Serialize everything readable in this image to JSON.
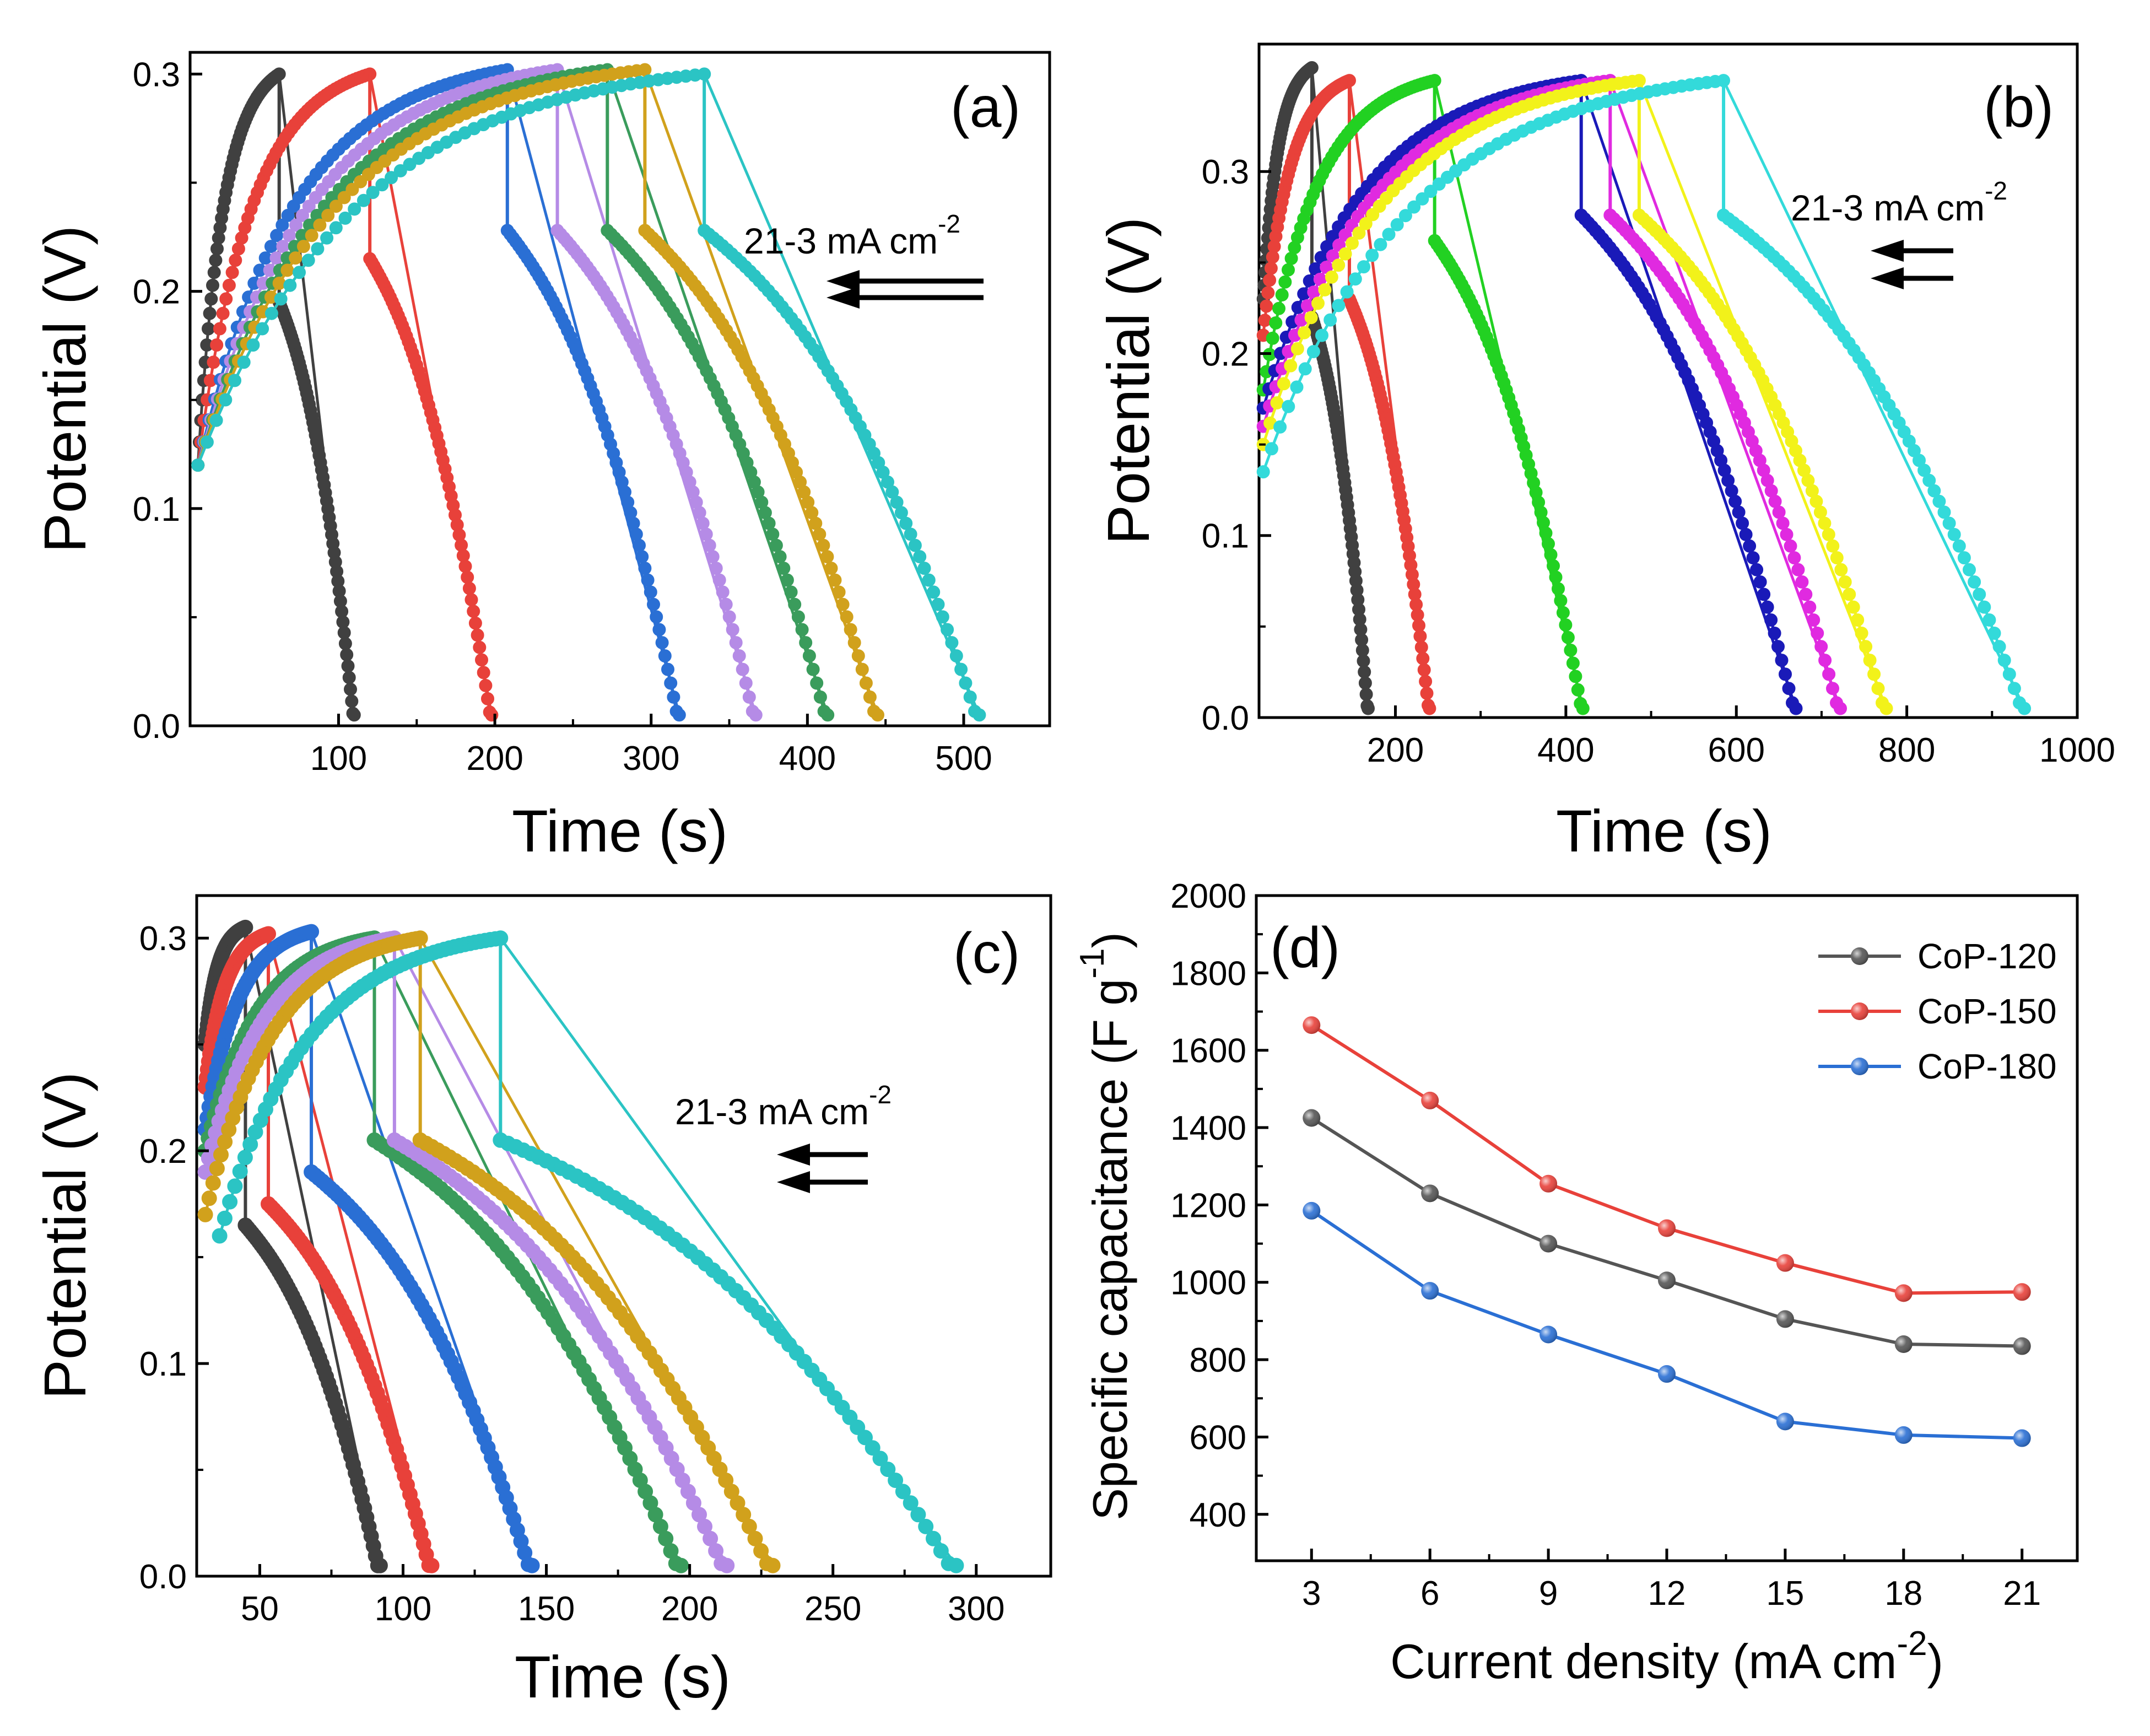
{
  "figure": {
    "arrow_note": "21-3 mA cm",
    "arrow_note_sup": "-2"
  },
  "chart_data": [
    {
      "id": "a",
      "type": "line",
      "panel_label": "(a)",
      "xlabel": "Time (s)",
      "ylabel": "Potential (V)",
      "xlim": [
        5,
        555
      ],
      "ylim": [
        0,
        0.31
      ],
      "xticks": [
        100,
        200,
        300,
        400,
        500
      ],
      "yticks": [
        0.0,
        0.1,
        0.2,
        0.3
      ],
      "series": [
        {
          "color": "#404040",
          "start_v": 0.12,
          "peak_v": 0.3,
          "charge_start": 10,
          "charge_end": 62,
          "discharge_start_v": 0.195,
          "discharge_end": 110
        },
        {
          "color": "#e8413a",
          "start_v": 0.12,
          "peak_v": 0.3,
          "charge_start": 10,
          "charge_end": 120,
          "discharge_start_v": 0.215,
          "discharge_end": 198
        },
        {
          "color": "#2a6fd4",
          "start_v": 0.12,
          "peak_v": 0.302,
          "charge_start": 10,
          "charge_end": 208,
          "discharge_start_v": 0.228,
          "discharge_end": 318
        },
        {
          "color": "#b58be6",
          "start_v": 0.12,
          "peak_v": 0.302,
          "charge_start": 10,
          "charge_end": 240,
          "discharge_start_v": 0.228,
          "discharge_end": 367
        },
        {
          "color": "#3a9c5c",
          "start_v": 0.12,
          "peak_v": 0.302,
          "charge_start": 10,
          "charge_end": 272,
          "discharge_start_v": 0.228,
          "discharge_end": 413
        },
        {
          "color": "#d1a11c",
          "start_v": 0.12,
          "peak_v": 0.302,
          "charge_start": 10,
          "charge_end": 296,
          "discharge_start_v": 0.228,
          "discharge_end": 445
        },
        {
          "color": "#2bc4c4",
          "start_v": 0.12,
          "peak_v": 0.3,
          "charge_start": 10,
          "charge_end": 334,
          "discharge_start_v": 0.228,
          "discharge_end": 510
        }
      ]
    },
    {
      "id": "b",
      "type": "line",
      "panel_label": "(b)",
      "xlabel": "Time (s)",
      "ylabel": "Potential (V)",
      "xlim": [
        40,
        1000
      ],
      "ylim": [
        0,
        0.37
      ],
      "xticks": [
        200,
        400,
        600,
        800,
        1000
      ],
      "yticks": [
        0.0,
        0.1,
        0.2,
        0.3
      ],
      "series": [
        {
          "color": "#404040",
          "start_v": 0.23,
          "peak_v": 0.357,
          "charge_start": 45,
          "charge_end": 102,
          "discharge_start_v": 0.22,
          "discharge_end": 168
        },
        {
          "color": "#e8413a",
          "start_v": 0.21,
          "peak_v": 0.35,
          "charge_start": 45,
          "charge_end": 146,
          "discharge_start_v": 0.23,
          "discharge_end": 240
        },
        {
          "color": "#22d122",
          "start_v": 0.18,
          "peak_v": 0.35,
          "charge_start": 45,
          "charge_end": 246,
          "discharge_start_v": 0.262,
          "discharge_end": 420
        },
        {
          "color": "#1a1ab8",
          "start_v": 0.17,
          "peak_v": 0.35,
          "charge_start": 45,
          "charge_end": 418,
          "discharge_start_v": 0.276,
          "discharge_end": 670
        },
        {
          "color": "#e02ae0",
          "start_v": 0.16,
          "peak_v": 0.35,
          "charge_start": 45,
          "charge_end": 452,
          "discharge_start_v": 0.276,
          "discharge_end": 722
        },
        {
          "color": "#f2f21a",
          "start_v": 0.15,
          "peak_v": 0.35,
          "charge_start": 45,
          "charge_end": 486,
          "discharge_start_v": 0.276,
          "discharge_end": 776
        },
        {
          "color": "#33dada",
          "start_v": 0.135,
          "peak_v": 0.35,
          "charge_start": 45,
          "charge_end": 585,
          "discharge_start_v": 0.276,
          "discharge_end": 938
        }
      ]
    },
    {
      "id": "c",
      "type": "line",
      "panel_label": "(c)",
      "xlabel": "Time (s)",
      "ylabel": "Potential (V)",
      "xlim": [
        28,
        326
      ],
      "ylim": [
        0,
        0.32
      ],
      "xticks": [
        50,
        100,
        150,
        200,
        250,
        300
      ],
      "yticks": [
        0.0,
        0.1,
        0.2,
        0.3
      ],
      "series": [
        {
          "color": "#404040",
          "start_v": 0.25,
          "peak_v": 0.305,
          "charge_start": 31,
          "charge_end": 45,
          "discharge_start_v": 0.165,
          "discharge_end": 92
        },
        {
          "color": "#e8413a",
          "start_v": 0.23,
          "peak_v": 0.302,
          "charge_start": 31,
          "charge_end": 53,
          "discharge_start_v": 0.175,
          "discharge_end": 110
        },
        {
          "color": "#2a6fd4",
          "start_v": 0.21,
          "peak_v": 0.303,
          "charge_start": 31,
          "charge_end": 68,
          "discharge_start_v": 0.19,
          "discharge_end": 145
        },
        {
          "color": "#3a9c5c",
          "start_v": 0.2,
          "peak_v": 0.3,
          "charge_start": 31,
          "charge_end": 90,
          "discharge_start_v": 0.205,
          "discharge_end": 197
        },
        {
          "color": "#b58be6",
          "start_v": 0.19,
          "peak_v": 0.3,
          "charge_start": 31,
          "charge_end": 97,
          "discharge_start_v": 0.205,
          "discharge_end": 213
        },
        {
          "color": "#d1a11c",
          "start_v": 0.17,
          "peak_v": 0.3,
          "charge_start": 31,
          "charge_end": 106,
          "discharge_start_v": 0.205,
          "discharge_end": 229
        },
        {
          "color": "#2bc4c4",
          "start_v": 0.16,
          "peak_v": 0.3,
          "charge_start": 36,
          "charge_end": 134,
          "discharge_start_v": 0.205,
          "discharge_end": 293
        }
      ]
    },
    {
      "id": "d",
      "type": "line",
      "panel_label": "(d)",
      "xlabel": "Current density (mA cm",
      "xlabel_sup": "-2",
      "xlabel_tail": ")",
      "ylabel": "Specific capacitance (F g",
      "ylabel_sup": "-1",
      "ylabel_tail": ")",
      "xlim": [
        1.6,
        22.4
      ],
      "ylim": [
        280,
        2000
      ],
      "xticks": [
        3,
        6,
        9,
        12,
        15,
        18,
        21
      ],
      "yticks": [
        400,
        600,
        800,
        1000,
        1200,
        1400,
        1600,
        1800,
        2000
      ],
      "x": [
        3,
        6,
        9,
        12,
        15,
        18,
        21
      ],
      "series": [
        {
          "name": "CoP-120",
          "color": "#555555",
          "values": [
            1425,
            1230,
            1100,
            1005,
            905,
            840,
            835
          ]
        },
        {
          "name": "CoP-150",
          "color": "#e8413a",
          "values": [
            1665,
            1470,
            1255,
            1140,
            1050,
            972,
            975
          ]
        },
        {
          "name": "CoP-180",
          "color": "#2a6fd4",
          "values": [
            1185,
            978,
            865,
            763,
            640,
            605,
            597
          ]
        }
      ],
      "legend_position": "top-right"
    }
  ]
}
